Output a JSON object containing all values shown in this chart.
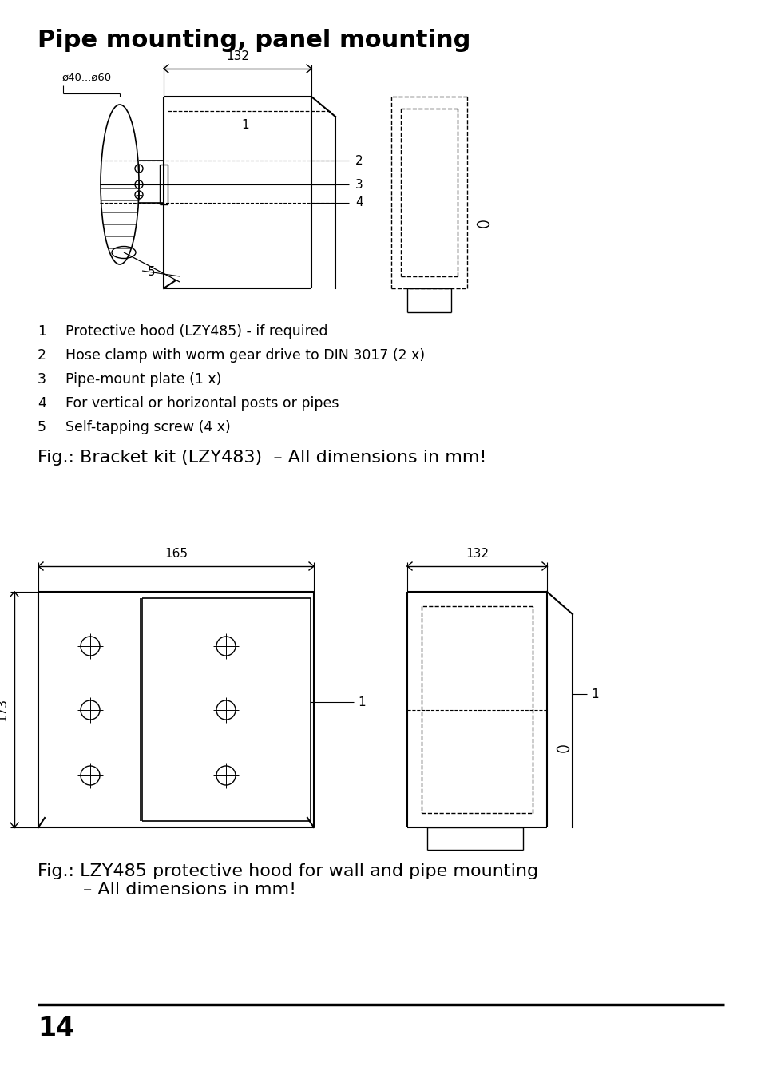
{
  "title": "Pipe mounting, panel mounting",
  "bg_color": "#ffffff",
  "text_color": "#000000",
  "page_number": "14",
  "legend_items": [
    [
      "1",
      "Protective hood (LZY485) - if required"
    ],
    [
      "2",
      "Hose clamp with worm gear drive to DIN 3017 (2 x)"
    ],
    [
      "3",
      "Pipe-mount plate (1 x)"
    ],
    [
      "4",
      "For vertical or horizontal posts or pipes"
    ],
    [
      "5",
      "Self-tapping screw (4 x)"
    ]
  ],
  "fig_caption1": "Fig.: Bracket kit (LZY483)  – All dimensions in mm!",
  "fig_caption2": "Fig.: LZY485 protective hood for wall and pipe mounting\n        – All dimensions in mm!"
}
